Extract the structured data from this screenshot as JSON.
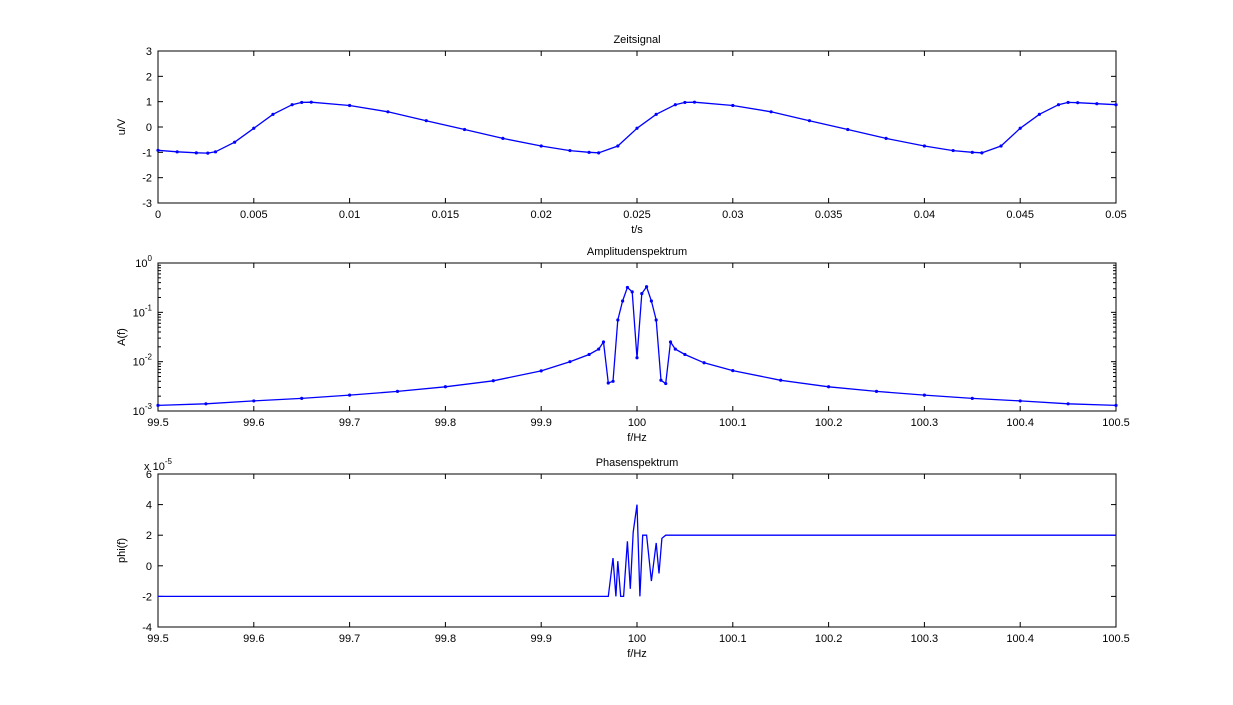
{
  "chart_data": [
    {
      "type": "line",
      "title": "Zeitsignal",
      "xlabel": "t/s",
      "ylabel": "u/V",
      "xlim": [
        0,
        0.05
      ],
      "ylim": [
        -3,
        3
      ],
      "x_ticks": [
        0,
        0.005,
        0.01,
        0.015,
        0.02,
        0.025,
        0.03,
        0.035,
        0.04,
        0.045,
        0.05
      ],
      "x_tick_labels": [
        "0",
        "0.005",
        "0.01",
        "0.015",
        "0.02",
        "0.025",
        "0.03",
        "0.035",
        "0.04",
        "0.045",
        "0.05"
      ],
      "y_ticks": [
        -3,
        -2,
        -1,
        0,
        1,
        2,
        3
      ],
      "y_tick_labels": [
        "-3",
        "-2",
        "-1",
        "0",
        "1",
        "2",
        "3"
      ],
      "grid": false,
      "color": "#0000ff",
      "series": [
        {
          "marker": "dot",
          "x": [
            0,
            0.001,
            0.002,
            0.0026,
            0.003,
            0.004,
            0.005,
            0.006,
            0.007,
            0.0075,
            0.008,
            0.01,
            0.012,
            0.014,
            0.016,
            0.018,
            0.02,
            0.0215,
            0.0225,
            0.023,
            0.024,
            0.025,
            0.026,
            0.027,
            0.0275,
            0.028,
            0.03,
            0.032,
            0.034,
            0.036,
            0.038,
            0.04,
            0.0415,
            0.0425,
            0.043,
            0.044,
            0.045,
            0.046,
            0.047,
            0.0475,
            0.048,
            0.049,
            0.05
          ],
          "y": [
            -0.92,
            -0.98,
            -1.02,
            -1.03,
            -0.98,
            -0.6,
            -0.05,
            0.5,
            0.88,
            0.97,
            0.98,
            0.85,
            0.6,
            0.25,
            -0.1,
            -0.45,
            -0.75,
            -0.93,
            -1.0,
            -1.02,
            -0.75,
            -0.05,
            0.5,
            0.88,
            0.97,
            0.98,
            0.85,
            0.6,
            0.25,
            -0.1,
            -0.45,
            -0.75,
            -0.93,
            -1.0,
            -1.02,
            -0.75,
            -0.05,
            0.5,
            0.88,
            0.97,
            0.96,
            0.92,
            0.88
          ]
        }
      ]
    },
    {
      "type": "line",
      "title": "Amplitudenspektrum",
      "xlabel": "f/Hz",
      "ylabel": "A(f)",
      "yscale": "log",
      "xlim": [
        99.5,
        100.5
      ],
      "ylim": [
        0.001,
        1
      ],
      "x_ticks": [
        99.5,
        99.6,
        99.7,
        99.8,
        99.9,
        100,
        100.1,
        100.2,
        100.3,
        100.4,
        100.5
      ],
      "x_tick_labels": [
        "99.5",
        "99.6",
        "99.7",
        "99.8",
        "99.9",
        "100",
        "100.1",
        "100.2",
        "100.3",
        "100.4",
        "100.5"
      ],
      "y_ticks": [
        0.001,
        0.01,
        0.1,
        1
      ],
      "y_tick_base": [
        "10",
        "10",
        "10",
        "10"
      ],
      "y_tick_exponents": [
        "-3",
        "-2",
        "-1",
        "0"
      ],
      "grid": false,
      "color": "#0000ff",
      "series": [
        {
          "marker": "dot",
          "x": [
            99.5,
            99.55,
            99.6,
            99.65,
            99.7,
            99.75,
            99.8,
            99.85,
            99.9,
            99.93,
            99.95,
            99.96,
            99.965,
            99.97,
            99.975,
            99.98,
            99.985,
            99.99,
            99.995,
            100.0,
            100.005,
            100.01,
            100.015,
            100.02,
            100.025,
            100.03,
            100.035,
            100.04,
            100.05,
            100.07,
            100.1,
            100.15,
            100.2,
            100.25,
            100.3,
            100.35,
            100.4,
            100.45,
            100.5
          ],
          "y": [
            0.0013,
            0.0014,
            0.0016,
            0.0018,
            0.0021,
            0.0025,
            0.0031,
            0.0041,
            0.0065,
            0.01,
            0.014,
            0.018,
            0.025,
            0.0037,
            0.004,
            0.07,
            0.17,
            0.32,
            0.26,
            0.012,
            0.24,
            0.33,
            0.17,
            0.07,
            0.0042,
            0.0036,
            0.025,
            0.018,
            0.014,
            0.0095,
            0.0066,
            0.0042,
            0.0031,
            0.0025,
            0.0021,
            0.0018,
            0.0016,
            0.0014,
            0.0013
          ]
        }
      ]
    },
    {
      "type": "line",
      "title": "Phasenspektrum",
      "xlabel": "f/Hz",
      "ylabel": "phi(f)",
      "xlim": [
        99.5,
        100.5
      ],
      "ylim": [
        -4,
        6
      ],
      "scale_factor_base": "x 10",
      "scale_factor_exponent": "-5",
      "x_ticks": [
        99.5,
        99.6,
        99.7,
        99.8,
        99.9,
        100,
        100.1,
        100.2,
        100.3,
        100.4,
        100.5
      ],
      "x_tick_labels": [
        "99.5",
        "99.6",
        "99.7",
        "99.8",
        "99.9",
        "100",
        "100.1",
        "100.2",
        "100.3",
        "100.4",
        "100.5"
      ],
      "y_ticks": [
        -4,
        -2,
        0,
        2,
        4,
        6
      ],
      "y_tick_labels": [
        "-4",
        "-2",
        "0",
        "2",
        "4",
        "6"
      ],
      "grid": false,
      "color": "#0000ff",
      "series": [
        {
          "marker": "none",
          "x": [
            99.5,
            99.6,
            99.7,
            99.8,
            99.9,
            99.97,
            99.975,
            99.978,
            99.98,
            99.983,
            99.986,
            99.99,
            99.993,
            99.996,
            100.0,
            100.003,
            100.006,
            100.01,
            100.015,
            100.02,
            100.023,
            100.026,
            100.03,
            100.1,
            100.2,
            100.3,
            100.4,
            100.5
          ],
          "y": [
            -2.0,
            -2.0,
            -2.0,
            -2.0,
            -2.0,
            -2.0,
            0.5,
            -2.0,
            0.3,
            -2.0,
            -2.0,
            1.6,
            -1.5,
            2.2,
            4.0,
            -2.0,
            2.0,
            2.0,
            -1.0,
            1.5,
            -0.5,
            1.8,
            2.0,
            2.0,
            2.0,
            2.0,
            2.0,
            2.0
          ]
        }
      ]
    }
  ]
}
